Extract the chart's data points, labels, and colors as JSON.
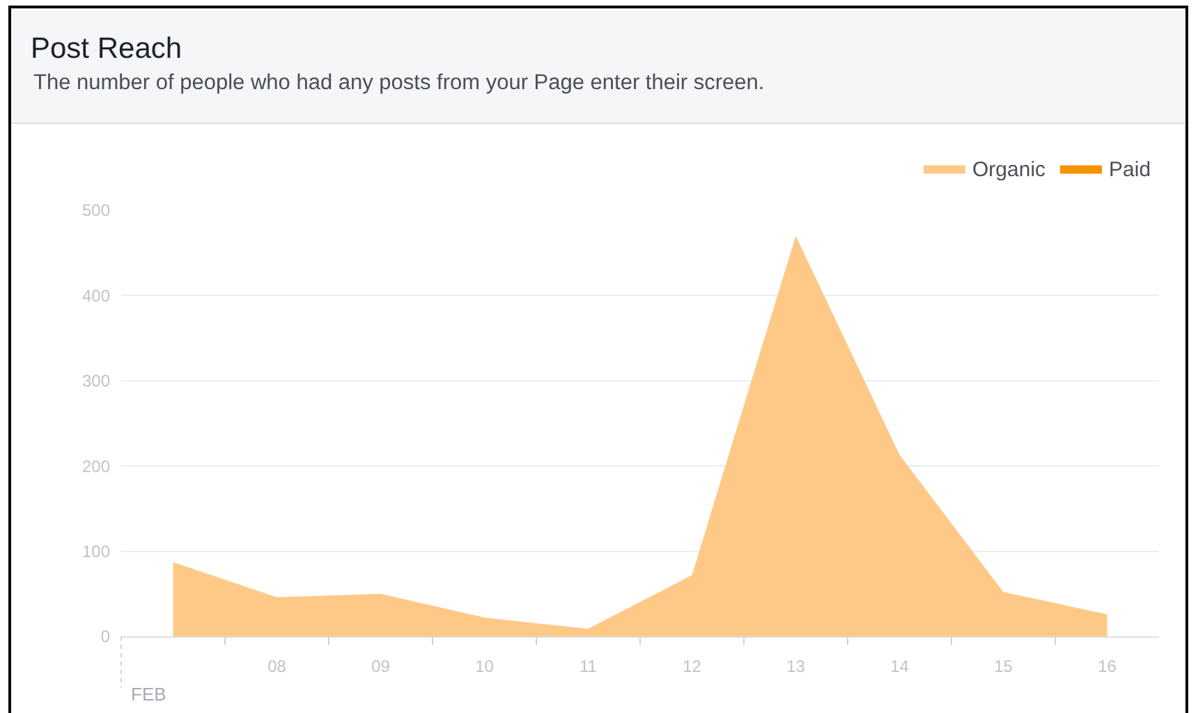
{
  "chart_data": {
    "type": "area",
    "title": "Post Reach",
    "subtitle": "The number of people who had any posts from your Page enter their screen.",
    "categories": [
      null,
      "08",
      "09",
      "10",
      "11",
      "12",
      "13",
      "14",
      "15",
      "16"
    ],
    "series": [
      {
        "name": "Organic",
        "color": "#fec987",
        "values": [
          87,
          46,
          50,
          22,
          9,
          72,
          470,
          213,
          52,
          26
        ]
      },
      {
        "name": "Paid",
        "color": "#f59300",
        "values": [
          null,
          null,
          null,
          null,
          null,
          null,
          null,
          null,
          null,
          null
        ]
      }
    ],
    "ylim": [
      0,
      500
    ],
    "yticks": [
      0,
      100,
      200,
      300,
      400,
      500
    ],
    "grid": "y",
    "legend": "top right",
    "annotations": [
      "FEB"
    ]
  }
}
